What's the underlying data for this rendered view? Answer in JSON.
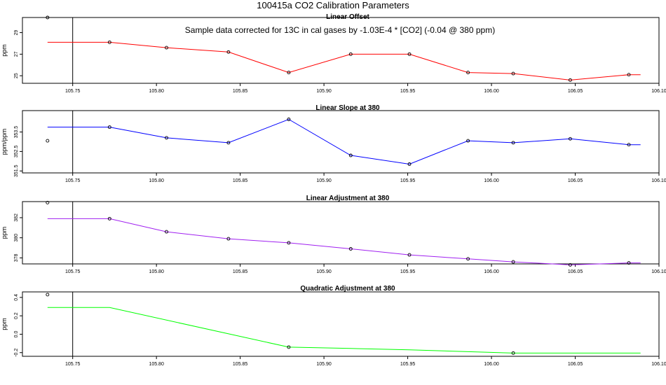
{
  "figure": {
    "main_title": "100415a   CO2 Calibration Parameters"
  },
  "chart_data": [
    {
      "type": "line",
      "title": "Linear Offset",
      "ylabel": "ppm",
      "xlabel": "",
      "annotation": "Sample data corrected for 13C in cal gases by -1.03E-4 * [CO2] (-0.04 @ 380 ppm)",
      "xlim": [
        105.72,
        106.1
      ],
      "ylim": [
        24.3,
        30.4
      ],
      "xticks": [
        "105.75",
        "105.80",
        "105.85",
        "105.90",
        "105.95",
        "106.00",
        "106.05",
        "106.10"
      ],
      "yticks": [
        "25",
        "27",
        "29"
      ],
      "line_color": "#ff0000",
      "vline_x": 105.75,
      "line_x": [
        105.735,
        105.772,
        105.806,
        105.843,
        105.879,
        105.916,
        105.951,
        105.986,
        106.013,
        106.047,
        106.082,
        106.089
      ],
      "line_y": [
        28.1,
        28.1,
        27.6,
        27.2,
        25.3,
        27.0,
        27.0,
        25.3,
        25.2,
        24.6,
        25.1,
        25.1
      ],
      "points_x": [
        105.735,
        105.772,
        105.806,
        105.843,
        105.879,
        105.916,
        105.951,
        105.986,
        106.013,
        106.047,
        106.082
      ],
      "points_y": [
        30.4,
        28.1,
        27.6,
        27.2,
        25.3,
        27.0,
        27.0,
        25.3,
        25.2,
        24.6,
        25.1
      ]
    },
    {
      "type": "line",
      "title": "Linear Slope at 380",
      "ylabel": "ppm/ppm",
      "xlabel": "",
      "xlim": [
        105.72,
        106.1
      ],
      "ylim": [
        351.4,
        354.6
      ],
      "xticks": [
        "105.75",
        "105.80",
        "105.85",
        "105.90",
        "105.95",
        "106.00",
        "106.05",
        "106.10"
      ],
      "yticks": [
        "351.5",
        "352.5",
        "353.5"
      ],
      "line_color": "#0000ff",
      "vline_x": 105.75,
      "line_x": [
        105.735,
        105.772,
        105.806,
        105.843,
        105.879,
        105.916,
        105.951,
        105.986,
        106.013,
        106.047,
        106.082,
        106.089
      ],
      "line_y": [
        353.75,
        353.75,
        353.2,
        352.95,
        354.15,
        352.3,
        351.85,
        353.05,
        352.95,
        353.15,
        352.85,
        352.85
      ],
      "points_x": [
        105.735,
        105.772,
        105.806,
        105.843,
        105.879,
        105.916,
        105.951,
        105.986,
        106.013,
        106.047,
        106.082
      ],
      "points_y": [
        353.05,
        353.75,
        353.2,
        352.95,
        354.15,
        352.3,
        351.85,
        353.05,
        352.95,
        353.15,
        352.85
      ]
    },
    {
      "type": "line",
      "title": "Linear Adjustment at 380",
      "ylabel": "ppm",
      "xlabel": "",
      "xlim": [
        105.72,
        106.1
      ],
      "ylim": [
        377.4,
        383.6
      ],
      "xticks": [
        "105.75",
        "105.80",
        "105.85",
        "105.90",
        "105.95",
        "106.00",
        "106.05",
        "106.10"
      ],
      "yticks": [
        "378",
        "380",
        "382"
      ],
      "line_color": "#a020f0",
      "vline_x": 105.75,
      "line_x": [
        105.735,
        105.772,
        105.806,
        105.843,
        105.879,
        105.916,
        105.951,
        105.986,
        106.013,
        106.047,
        106.082,
        106.089
      ],
      "line_y": [
        381.9,
        381.9,
        380.6,
        379.9,
        379.5,
        378.9,
        378.3,
        377.9,
        377.6,
        377.3,
        377.5,
        377.5
      ],
      "points_x": [
        105.735,
        105.772,
        105.806,
        105.843,
        105.879,
        105.916,
        105.951,
        105.986,
        106.013,
        106.047,
        106.082
      ],
      "points_y": [
        383.5,
        381.9,
        380.6,
        379.9,
        379.5,
        378.9,
        378.3,
        377.9,
        377.6,
        377.3,
        377.5
      ]
    },
    {
      "type": "line",
      "title": "Quadratic Adjustment at 380",
      "ylabel": "ppm",
      "xlabel": "",
      "xlim": [
        105.72,
        106.1
      ],
      "ylim": [
        -0.24,
        0.46
      ],
      "xticks": [
        "105.75",
        "105.80",
        "105.85",
        "105.90",
        "105.95",
        "106.00",
        "106.05",
        "106.10"
      ],
      "yticks": [
        "-0.2",
        "0.0",
        "0.2",
        "0.4"
      ],
      "line_color": "#00ff00",
      "vline_x": 105.75,
      "line_x": [
        105.735,
        105.772,
        105.879,
        105.916,
        105.951,
        105.986,
        106.013,
        106.047,
        106.082,
        106.089
      ],
      "line_y": [
        0.29,
        0.29,
        -0.14,
        -0.155,
        -0.17,
        -0.19,
        -0.205,
        -0.205,
        -0.205,
        -0.205
      ],
      "points_x": [
        105.735,
        105.879,
        106.013
      ],
      "points_y": [
        0.43,
        -0.14,
        -0.205
      ]
    }
  ]
}
